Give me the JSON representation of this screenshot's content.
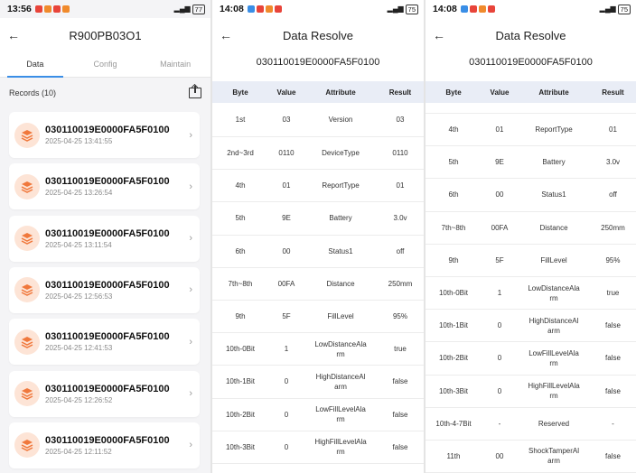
{
  "screens": [
    {
      "status": {
        "time": "13:56",
        "battery": "77"
      },
      "title": "R900PB03O1",
      "tabs": [
        "Data",
        "Config",
        "Maintain"
      ],
      "records_label": "Records (10)",
      "records": [
        {
          "id": "030110019E0000FA5F0100",
          "time": "2025-04-25 13:41:55"
        },
        {
          "id": "030110019E0000FA5F0100",
          "time": "2025-04-25 13:26:54"
        },
        {
          "id": "030110019E0000FA5F0100",
          "time": "2025-04-25 13:11:54"
        },
        {
          "id": "030110019E0000FA5F0100",
          "time": "2025-04-25 12:56:53"
        },
        {
          "id": "030110019E0000FA5F0100",
          "time": "2025-04-25 12:41:53"
        },
        {
          "id": "030110019E0000FA5F0100",
          "time": "2025-04-25 12:26:52"
        },
        {
          "id": "030110019E0000FA5F0100",
          "time": "2025-04-25 12:11:52"
        }
      ]
    },
    {
      "status": {
        "time": "14:08",
        "battery": "75"
      },
      "title": "Data Resolve",
      "code": "030110019E0000FA5F0100",
      "headers": [
        "Byte",
        "Value",
        "Attribute",
        "Result"
      ],
      "rows": [
        {
          "byte": "1st",
          "value": "03",
          "attr": "Version",
          "result": "03"
        },
        {
          "byte": "2nd~3rd",
          "value": "0110",
          "attr": "DeviceType",
          "result": "0110"
        },
        {
          "byte": "4th",
          "value": "01",
          "attr": "ReportType",
          "result": "01"
        },
        {
          "byte": "5th",
          "value": "9E",
          "attr": "Battery",
          "result": "3.0v"
        },
        {
          "byte": "6th",
          "value": "00",
          "attr": "Status1",
          "result": "off"
        },
        {
          "byte": "7th~8th",
          "value": "00FA",
          "attr": "Distance",
          "result": "250mm"
        },
        {
          "byte": "9th",
          "value": "5F",
          "attr": "FillLevel",
          "result": "95%"
        },
        {
          "byte": "10th-0Bit",
          "value": "1",
          "attr": "LowDistanceAla\nrm",
          "result": "true"
        },
        {
          "byte": "10th-1Bit",
          "value": "0",
          "attr": "HighDistanceAl\narm",
          "result": "false"
        },
        {
          "byte": "10th-2Bit",
          "value": "0",
          "attr": "LowFillLevelAla\nrm",
          "result": "false"
        },
        {
          "byte": "10th-3Bit",
          "value": "0",
          "attr": "HighFillLevelAla\nrm",
          "result": "false"
        }
      ]
    },
    {
      "status": {
        "time": "14:08",
        "battery": "75"
      },
      "title": "Data Resolve",
      "code": "030110019E0000FA5F0100",
      "headers": [
        "Byte",
        "Value",
        "Attribute",
        "Result"
      ],
      "rows": [
        {
          "byte": "4th",
          "value": "01",
          "attr": "ReportType",
          "result": "01"
        },
        {
          "byte": "5th",
          "value": "9E",
          "attr": "Battery",
          "result": "3.0v"
        },
        {
          "byte": "6th",
          "value": "00",
          "attr": "Status1",
          "result": "off"
        },
        {
          "byte": "7th~8th",
          "value": "00FA",
          "attr": "Distance",
          "result": "250mm"
        },
        {
          "byte": "9th",
          "value": "5F",
          "attr": "FillLevel",
          "result": "95%"
        },
        {
          "byte": "10th-0Bit",
          "value": "1",
          "attr": "LowDistanceAla\nrm",
          "result": "true"
        },
        {
          "byte": "10th-1Bit",
          "value": "0",
          "attr": "HighDistanceAl\narm",
          "result": "false"
        },
        {
          "byte": "10th-2Bit",
          "value": "0",
          "attr": "LowFillLevelAla\nrm",
          "result": "false"
        },
        {
          "byte": "10th-3Bit",
          "value": "0",
          "attr": "HighFillLevelAla\nrm",
          "result": "false"
        },
        {
          "byte": "10th-4-7Bit",
          "value": "-",
          "attr": "Reserved",
          "result": "-"
        },
        {
          "byte": "11th",
          "value": "00",
          "attr": "ShockTamperAl\narm",
          "result": "false"
        }
      ]
    }
  ],
  "icons": {
    "back": "back-arrow-icon",
    "chevron": "chevron-right-icon",
    "record": "layers-icon",
    "export": "export-icon"
  },
  "colors": {
    "accent": "#3a8ee6",
    "record_icon_bg": "#fde4d6",
    "record_icon": "#f0783c",
    "table_header_bg": "#e9edf6"
  }
}
